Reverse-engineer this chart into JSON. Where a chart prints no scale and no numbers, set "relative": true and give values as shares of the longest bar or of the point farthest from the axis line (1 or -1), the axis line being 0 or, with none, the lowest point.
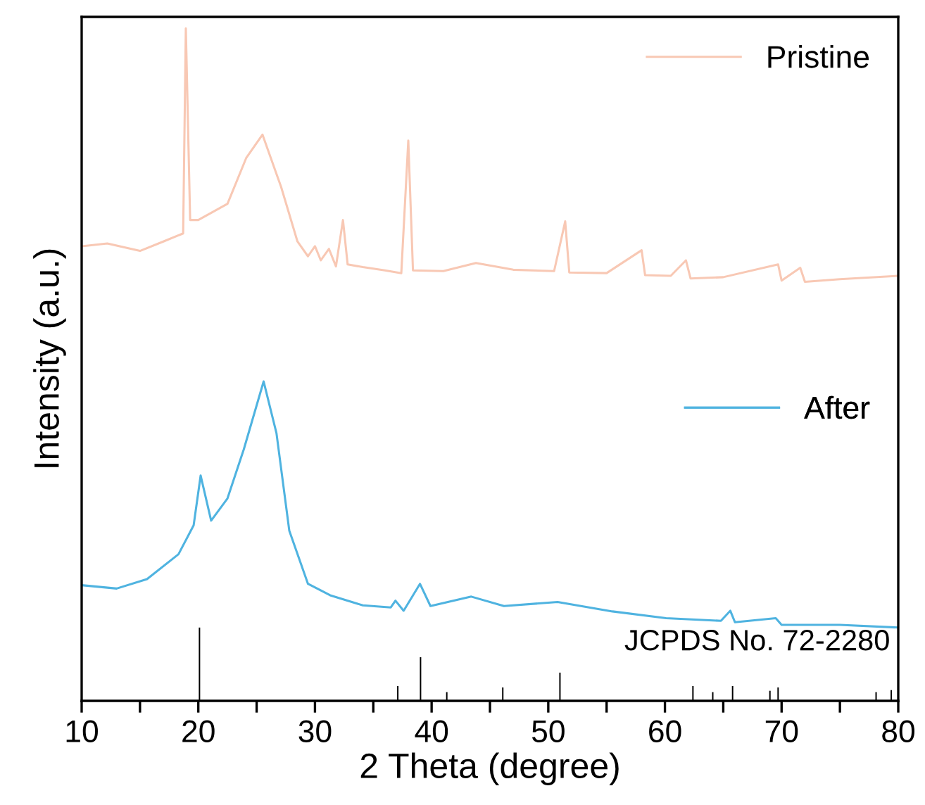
{
  "chart_data": {
    "type": "line",
    "relative": true,
    "xlabel": "2 Theta (degree)",
    "ylabel": "Intensity (a.u.)",
    "xlim": [
      10,
      80
    ],
    "xticks": [
      10,
      {
        "value": 15,
        "label": null
      },
      20,
      {
        "value": 25,
        "label": null
      },
      30,
      {
        "value": 35,
        "label": null
      },
      40,
      {
        "value": 45,
        "label": null
      },
      50,
      {
        "value": 55,
        "label": null
      },
      60,
      {
        "value": 65,
        "label": null
      },
      70,
      {
        "value": 75,
        "label": null
      },
      80
    ],
    "grid": false,
    "legend": "right",
    "tick_labels": "x",
    "annotations": [
      "JCPDS No. 72-2280"
    ],
    "series": [
      {
        "name": "Pristine",
        "color": "#f8c8b4",
        "x": [
          10,
          12.2,
          15,
          17,
          18.7,
          18.93,
          19.3,
          20,
          22.5,
          24.1,
          25.5,
          27.1,
          28.5,
          29.4,
          30.0,
          30.5,
          31.2,
          31.8,
          32.4,
          32.8,
          34.1,
          36,
          37.4,
          38.0,
          38.4,
          41,
          43.8,
          47,
          50.5,
          51.45,
          51.8,
          55,
          58.0,
          58.3,
          60.5,
          61.8,
          62.2,
          65,
          69.7,
          70,
          71.6,
          72,
          75,
          80
        ],
        "values": [
          0.676,
          0.68,
          0.669,
          0.683,
          0.695,
          1.0,
          0.715,
          0.715,
          0.739,
          0.807,
          0.842,
          0.764,
          0.683,
          0.661,
          0.676,
          0.655,
          0.672,
          0.646,
          0.715,
          0.649,
          0.645,
          0.64,
          0.636,
          0.833,
          0.64,
          0.639,
          0.651,
          0.641,
          0.639,
          0.713,
          0.637,
          0.636,
          0.67,
          0.633,
          0.632,
          0.655,
          0.628,
          0.63,
          0.649,
          0.625,
          0.644,
          0.623,
          0.627,
          0.632
        ]
      },
      {
        "name": "After",
        "color": "#4fb3e0",
        "x": [
          10,
          13,
          15.6,
          18.3,
          19.6,
          20.2,
          21.1,
          22.5,
          23.9,
          25.6,
          26.7,
          27.8,
          29.4,
          31.3,
          34.1,
          36.5,
          36.9,
          37.6,
          39.0,
          39.9,
          43.4,
          46.2,
          50.8,
          55.5,
          60.1,
          64.8,
          65.6,
          66,
          69.5,
          70,
          75,
          80
        ],
        "values": [
          0.172,
          0.167,
          0.181,
          0.218,
          0.261,
          0.335,
          0.268,
          0.301,
          0.374,
          0.475,
          0.398,
          0.253,
          0.174,
          0.157,
          0.142,
          0.139,
          0.149,
          0.134,
          0.174,
          0.141,
          0.155,
          0.141,
          0.147,
          0.133,
          0.123,
          0.119,
          0.134,
          0.117,
          0.123,
          0.113,
          0.113,
          0.109
        ]
      },
      {
        "type": "bar",
        "color": "#000000",
        "x": [
          20.1,
          37.1,
          39.05,
          41.3,
          46.1,
          51.0,
          62.4,
          64.1,
          65.8,
          69.0,
          69.7,
          78.1,
          79.4
        ],
        "values": [
          0.109,
          0.022,
          0.065,
          0.013,
          0.02,
          0.042,
          0.022,
          0.013,
          0.022,
          0.015,
          0.02,
          0.013,
          0.016
        ]
      }
    ]
  }
}
